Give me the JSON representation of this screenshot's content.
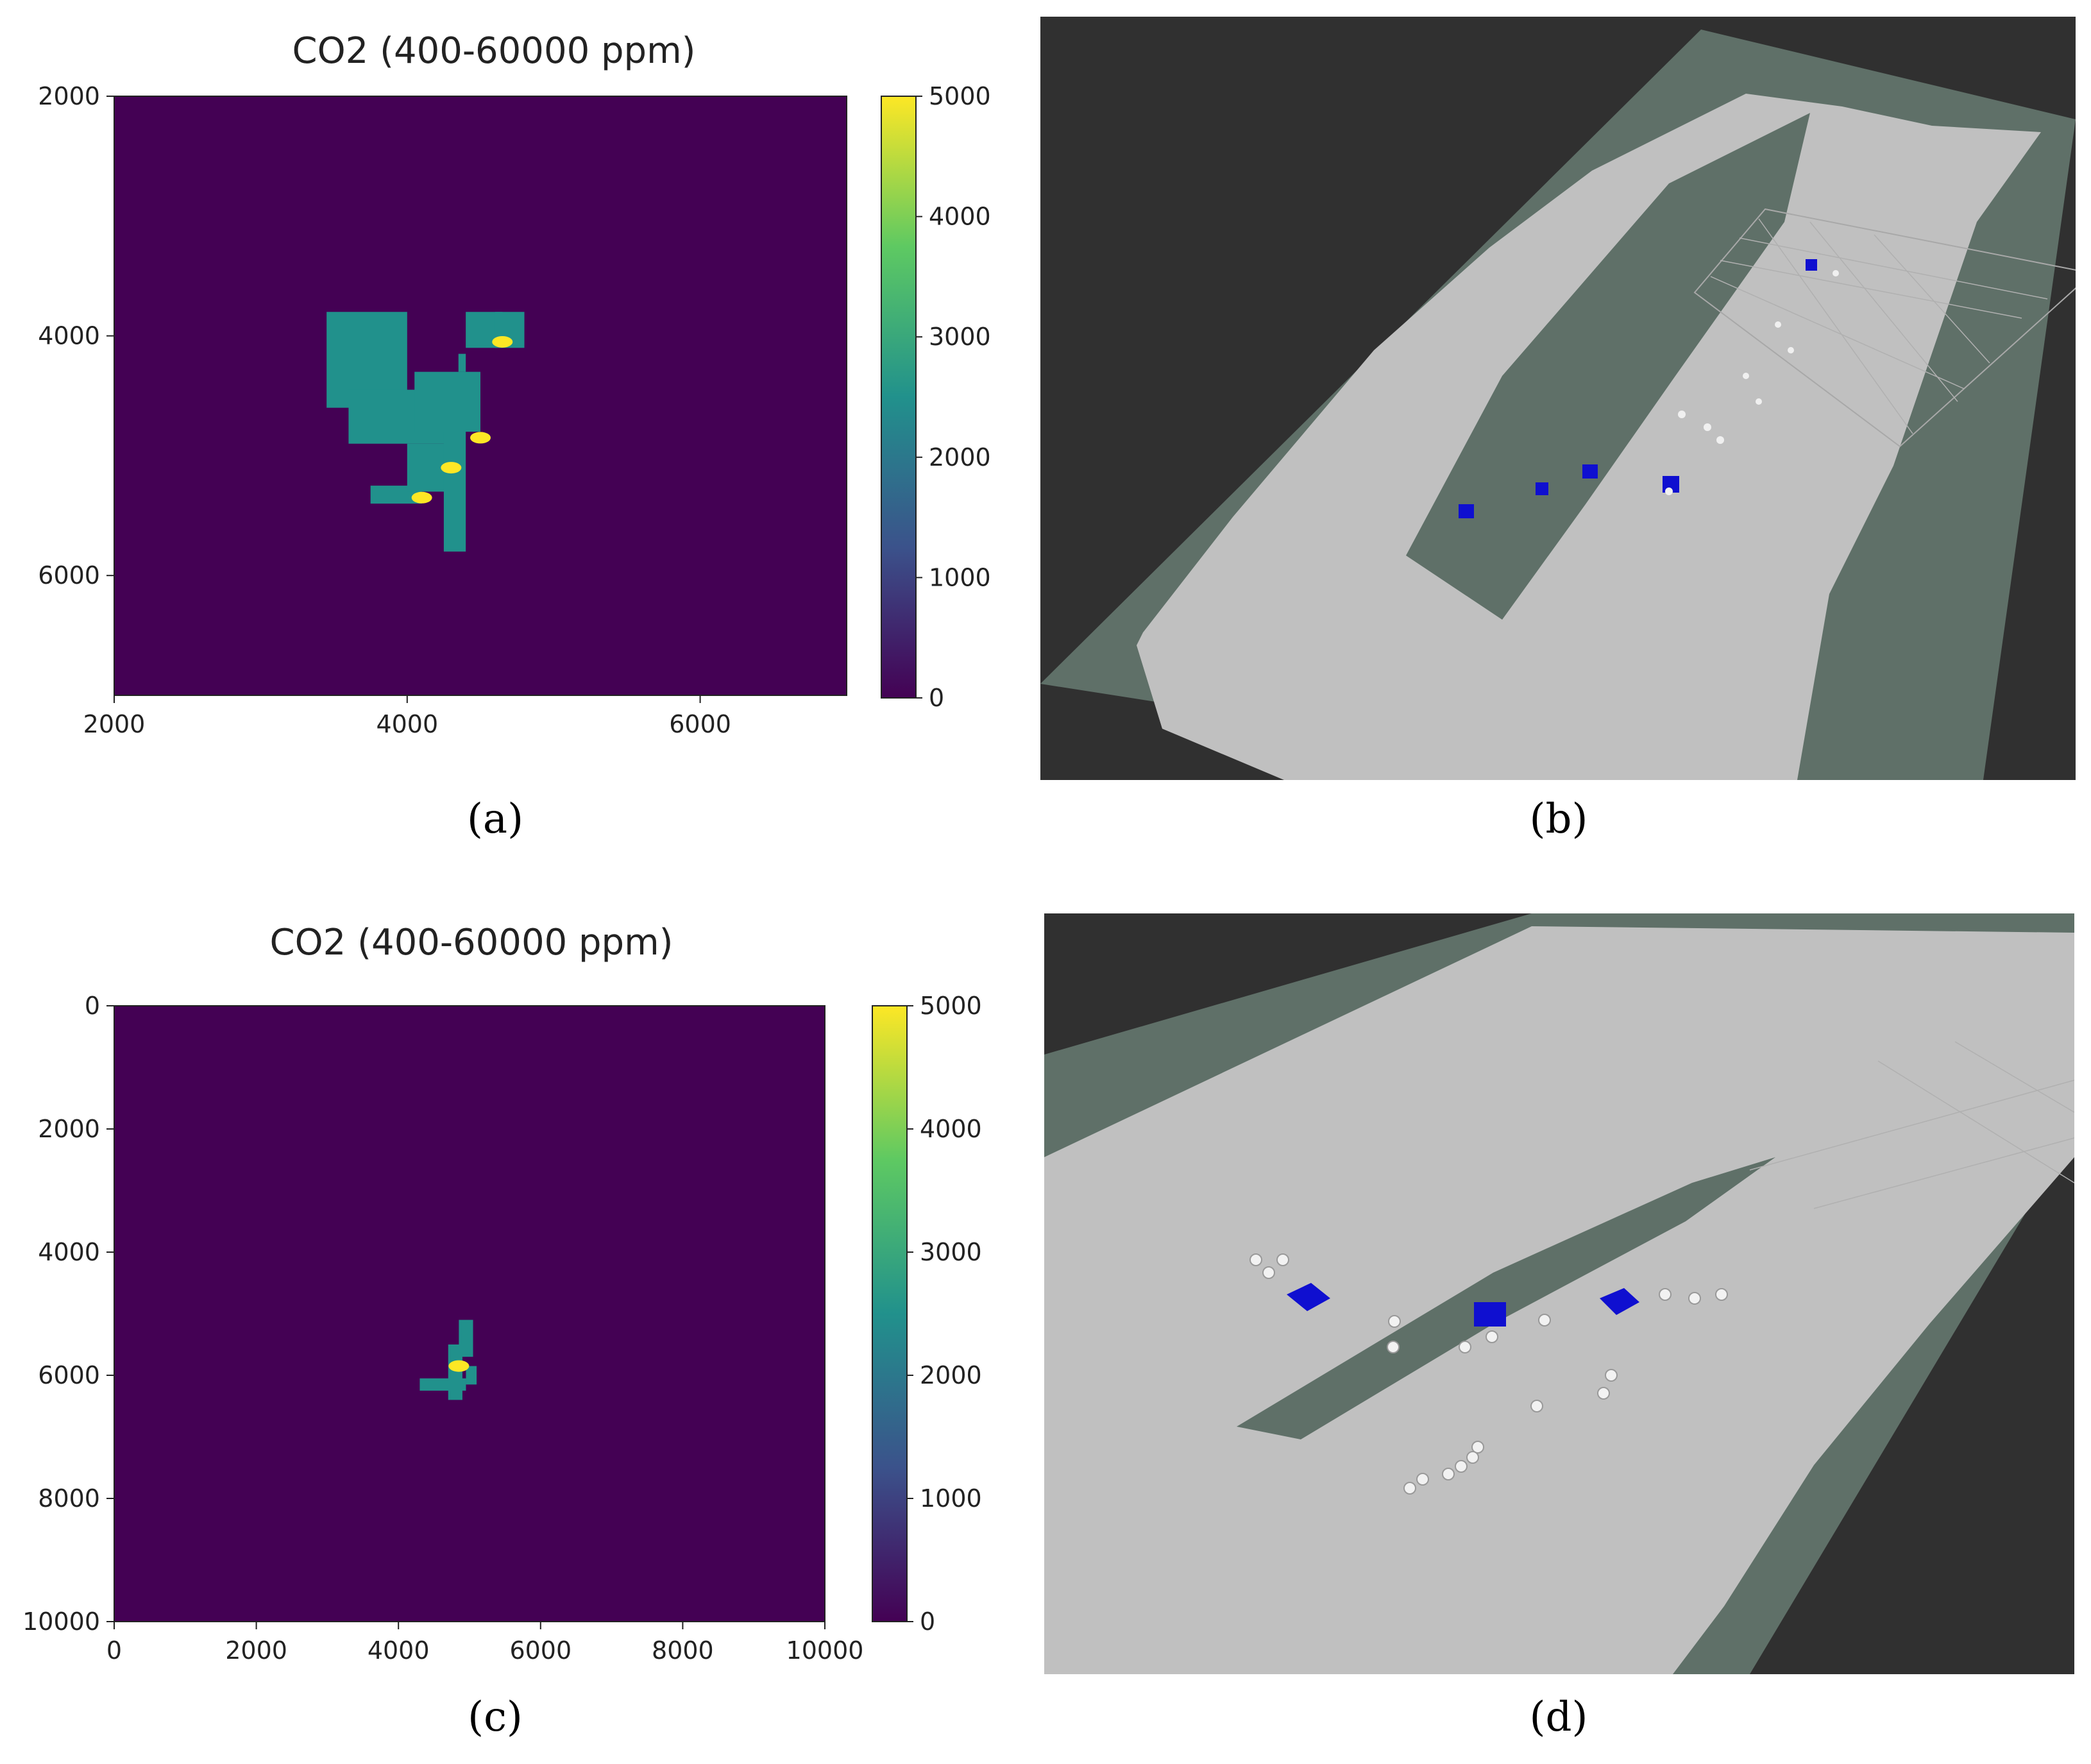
{
  "captions": {
    "a": "(a)",
    "b": "(b)",
    "c": "(c)",
    "d": "(d)"
  },
  "colors": {
    "viridis": [
      "#440154",
      "#3b528b",
      "#21918c",
      "#5ec962",
      "#fde725"
    ],
    "background": "#440154",
    "plume": "#21918c",
    "hotspot": "#fde725",
    "sim_dark": "#303030",
    "sim_ground": "#c0c0c0",
    "sim_unknown": "#5f7068",
    "sim_robot": "#0f0fd0"
  },
  "chart_data": [
    {
      "type": "heatmap",
      "title": "CO2 (400-60000 ppm)",
      "xlim": [
        2000,
        7000
      ],
      "ylim": [
        7000,
        2000
      ],
      "xticks": [
        "2000",
        "4000",
        "6000"
      ],
      "yticks": [
        "2000",
        "4000",
        "6000"
      ],
      "xtick_values": [
        2000,
        4000,
        6000
      ],
      "ytick_values": [
        2000,
        4000,
        6000
      ],
      "colorbar": {
        "range": [
          0,
          5000
        ],
        "ticks": [
          "0",
          "1000",
          "2000",
          "3000",
          "4000",
          "5000"
        ]
      },
      "background_value": 0,
      "plume_value": 2000,
      "plume_cells": [
        [
          3450,
          4000,
          3800,
          4600
        ],
        [
          3700,
          4350,
          4450,
          4700
        ],
        [
          3600,
          4300,
          4450,
          4900
        ],
        [
          3750,
          4100,
          5250,
          5400
        ],
        [
          4000,
          4300,
          4900,
          5300
        ],
        [
          4250,
          4400,
          4750,
          5800
        ],
        [
          4400,
          4650,
          3800,
          4100
        ],
        [
          4600,
          4800,
          3800,
          4100
        ],
        [
          4050,
          4500,
          4300,
          4800
        ],
        [
          4350,
          4400,
          4150,
          4300
        ]
      ],
      "hotspots": [
        [
          4100,
          5350
        ],
        [
          4500,
          4850
        ],
        [
          4300,
          5100
        ],
        [
          4650,
          4050
        ]
      ],
      "hotspot_value": 5000
    },
    {
      "type": "heatmap",
      "title": "CO2 (400-60000 ppm)",
      "xlim": [
        0,
        10000
      ],
      "ylim": [
        10000,
        0
      ],
      "xticks": [
        "0",
        "2000",
        "4000",
        "6000",
        "8000",
        "10000"
      ],
      "yticks": [
        "0",
        "2000",
        "4000",
        "6000",
        "8000",
        "10000"
      ],
      "xtick_values": [
        0,
        2000,
        4000,
        6000,
        8000,
        10000
      ],
      "ytick_values": [
        0,
        2000,
        4000,
        6000,
        8000,
        10000
      ],
      "colorbar": {
        "range": [
          0,
          5000
        ],
        "ticks": [
          "0",
          "1000",
          "2000",
          "3000",
          "4000",
          "5000"
        ]
      },
      "background_value": 0,
      "plume_value": 2000,
      "plume_cells": [
        [
          4300,
          4950,
          6050,
          6250
        ],
        [
          4700,
          4900,
          5500,
          6400
        ],
        [
          4850,
          5050,
          5100,
          5700
        ],
        [
          4950,
          5100,
          5850,
          6150
        ]
      ],
      "hotspots": [
        [
          4850,
          5850
        ]
      ],
      "hotspot_value": 5000
    }
  ]
}
